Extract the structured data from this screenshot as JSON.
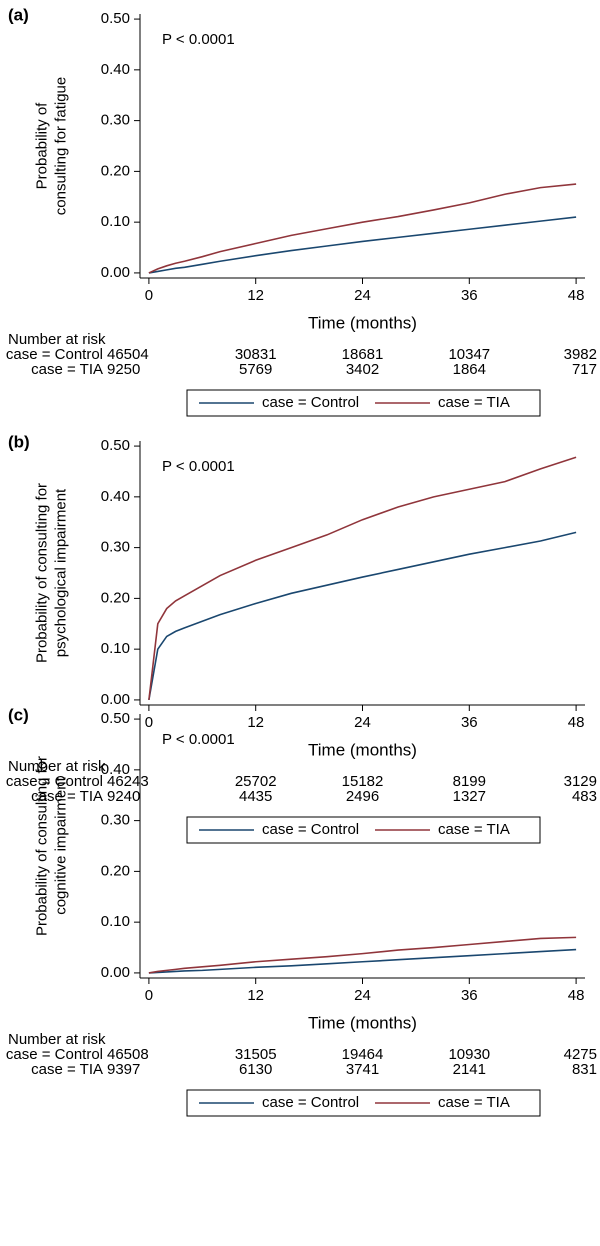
{
  "chart_data": [
    {
      "type": "line",
      "panel_label": "(a)",
      "annotation": "P < 0.0001",
      "ylabel": [
        "Probability of",
        "consulting for fatigue"
      ],
      "xlabel": "Time (months)",
      "x": [
        0,
        1,
        2,
        3,
        4,
        6,
        8,
        12,
        16,
        20,
        24,
        28,
        32,
        36,
        40,
        44,
        48
      ],
      "series": [
        {
          "name": "case = Control",
          "color": "#1a476f",
          "values": [
            0,
            0.003,
            0.006,
            0.009,
            0.011,
            0.017,
            0.023,
            0.034,
            0.044,
            0.053,
            0.062,
            0.07,
            0.078,
            0.086,
            0.094,
            0.102,
            0.11
          ]
        },
        {
          "name": "case = TIA",
          "color": "#90353b",
          "values": [
            0,
            0.008,
            0.014,
            0.019,
            0.023,
            0.032,
            0.042,
            0.058,
            0.074,
            0.087,
            0.1,
            0.111,
            0.124,
            0.138,
            0.155,
            0.168,
            0.175
          ]
        }
      ],
      "xlim": [
        -1,
        49
      ],
      "xticks": [
        0,
        12,
        24,
        36,
        48
      ],
      "ylim": [
        -0.01,
        0.51
      ],
      "yticks": [
        {
          "value": 0,
          "label": "0.00"
        },
        {
          "value": 0.1,
          "label": "0.10"
        },
        {
          "value": 0.2,
          "label": "0.20"
        },
        {
          "value": 0.3,
          "label": "0.30"
        },
        {
          "value": 0.4,
          "label": "0.40"
        },
        {
          "value": 0.5,
          "label": "0.50"
        }
      ],
      "legend": "bottom",
      "risk_table": {
        "title": "Number at risk",
        "rows": [
          {
            "label": "case = Control",
            "values": [
              46504,
              30831,
              18681,
              10347,
              3982
            ]
          },
          {
            "label": "case = TIA",
            "values": [
              9250,
              5769,
              3402,
              1864,
              717
            ]
          }
        ]
      }
    },
    {
      "type": "line",
      "panel_label": "(b)",
      "annotation": "P < 0.0001",
      "ylabel": [
        "Probability of consulting for",
        "psychological impairment"
      ],
      "xlabel": "Time (months)",
      "x": [
        0,
        1,
        2,
        3,
        4,
        6,
        8,
        12,
        16,
        20,
        24,
        28,
        32,
        36,
        40,
        44,
        48
      ],
      "series": [
        {
          "name": "case = Control",
          "color": "#1a476f",
          "values": [
            0,
            0.1,
            0.125,
            0.135,
            0.142,
            0.155,
            0.168,
            0.19,
            0.21,
            0.226,
            0.242,
            0.257,
            0.272,
            0.287,
            0.3,
            0.313,
            0.33
          ]
        },
        {
          "name": "case = TIA",
          "color": "#90353b",
          "values": [
            0,
            0.15,
            0.18,
            0.195,
            0.205,
            0.225,
            0.245,
            0.275,
            0.3,
            0.325,
            0.355,
            0.38,
            0.4,
            0.415,
            0.43,
            0.455,
            0.478
          ]
        }
      ],
      "xlim": [
        -1,
        49
      ],
      "xticks": [
        0,
        12,
        24,
        36,
        48
      ],
      "ylim": [
        -0.01,
        0.51
      ],
      "yticks": [
        {
          "value": 0,
          "label": "0.00"
        },
        {
          "value": 0.1,
          "label": "0.10"
        },
        {
          "value": 0.2,
          "label": "0.20"
        },
        {
          "value": 0.3,
          "label": "0.30"
        },
        {
          "value": 0.4,
          "label": "0.40"
        },
        {
          "value": 0.5,
          "label": "0.50"
        }
      ],
      "legend": "bottom",
      "risk_table": {
        "title": "Number at risk",
        "rows": [
          {
            "label": "case = Control",
            "values": [
              46243,
              25702,
              15182,
              8199,
              3129
            ]
          },
          {
            "label": "case = TIA",
            "values": [
              9240,
              4435,
              2496,
              1327,
              483
            ]
          }
        ]
      }
    },
    {
      "type": "line",
      "panel_label": "(c)",
      "annotation": "P < 0.0001",
      "ylabel": [
        "Probability of consulting for",
        "cognitive impairment"
      ],
      "xlabel": "Time (months)",
      "x": [
        0,
        1,
        2,
        3,
        4,
        6,
        8,
        12,
        16,
        20,
        24,
        28,
        32,
        36,
        40,
        44,
        48
      ],
      "series": [
        {
          "name": "case = Control",
          "color": "#1a476f",
          "values": [
            0,
            0.001,
            0.002,
            0.003,
            0.004,
            0.005,
            0.007,
            0.011,
            0.014,
            0.018,
            0.022,
            0.026,
            0.03,
            0.034,
            0.038,
            0.042,
            0.046
          ]
        },
        {
          "name": "case = TIA",
          "color": "#90353b",
          "values": [
            0,
            0.003,
            0.005,
            0.007,
            0.009,
            0.012,
            0.015,
            0.022,
            0.027,
            0.032,
            0.038,
            0.045,
            0.05,
            0.056,
            0.062,
            0.068,
            0.07
          ]
        }
      ],
      "xlim": [
        -1,
        49
      ],
      "xticks": [
        0,
        12,
        24,
        36,
        48
      ],
      "ylim": [
        -0.01,
        0.51
      ],
      "yticks": [
        {
          "value": 0,
          "label": "0.00"
        },
        {
          "value": 0.1,
          "label": "0.10"
        },
        {
          "value": 0.2,
          "label": "0.20"
        },
        {
          "value": 0.3,
          "label": "0.30"
        },
        {
          "value": 0.4,
          "label": "0.40"
        },
        {
          "value": 0.5,
          "label": "0.50"
        }
      ],
      "legend": "bottom",
      "risk_table": {
        "title": "Number at risk",
        "rows": [
          {
            "label": "case = Control",
            "values": [
              46508,
              31505,
              19464,
              10930,
              4275
            ]
          },
          {
            "label": "case = TIA",
            "values": [
              9397,
              6130,
              3741,
              2141,
              831
            ]
          }
        ]
      }
    }
  ]
}
